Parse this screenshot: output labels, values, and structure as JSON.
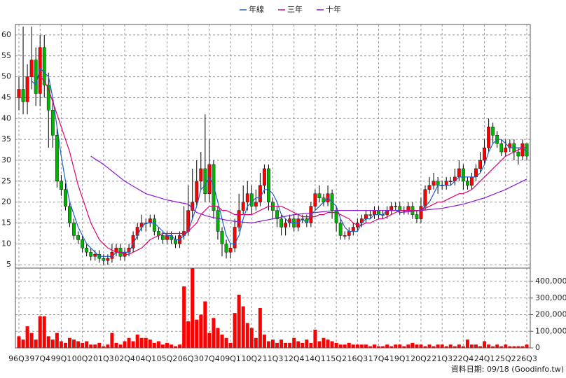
{
  "chart_data": {
    "type": "candlestick",
    "categories": [
      "96Q3",
      null,
      null,
      null,
      null,
      "97Q4",
      null,
      null,
      null,
      null,
      "99Q1",
      null,
      null,
      null,
      null,
      "00Q2",
      null,
      null,
      null,
      null,
      "01Q3",
      null,
      null,
      null,
      null,
      "02Q4",
      null,
      null,
      null,
      null,
      "04Q1",
      null,
      null,
      null,
      null,
      "05Q2",
      null,
      null,
      null,
      null,
      "06Q3",
      null,
      null,
      null,
      null,
      "07Q4",
      null,
      null,
      null,
      null,
      "09Q1",
      null,
      null,
      null,
      null,
      "10Q2",
      null,
      null,
      null,
      null,
      "11Q3",
      null,
      null,
      null,
      null,
      "12Q4",
      null,
      null,
      null,
      null,
      "14Q1",
      null,
      null,
      null,
      null,
      "15Q2",
      null,
      null,
      null,
      null,
      "16Q3",
      null,
      null,
      null,
      null,
      "17Q4",
      null,
      null,
      null,
      null,
      "19Q1",
      null,
      null,
      null,
      null,
      "20Q2",
      null,
      null,
      null,
      null,
      "21Q3",
      null,
      null,
      null,
      null,
      "22Q4",
      null,
      null,
      null,
      null,
      "24Q1",
      null,
      null,
      null,
      null,
      "25Q2",
      null,
      null,
      null,
      null,
      "26Q3"
    ],
    "ohlc": [
      [
        45,
        50,
        42,
        47
      ],
      [
        47,
        62,
        41,
        44
      ],
      [
        44,
        53,
        41,
        50
      ],
      [
        50,
        62,
        47,
        54
      ],
      [
        54,
        57,
        43,
        46
      ],
      [
        46,
        60,
        43,
        57
      ],
      [
        57,
        60,
        45,
        48
      ],
      [
        48,
        51,
        33,
        42
      ],
      [
        42,
        45,
        33,
        36
      ],
      [
        36,
        38,
        23.5,
        25
      ],
      [
        25,
        26.5,
        21.5,
        23
      ],
      [
        23,
        24.5,
        18,
        19
      ],
      [
        19,
        20,
        14,
        15
      ],
      [
        15,
        16,
        11,
        12
      ],
      [
        12,
        13,
        10,
        11
      ],
      [
        11,
        12,
        8,
        9
      ],
      [
        9,
        10,
        7,
        8
      ],
      [
        8,
        9,
        6,
        7
      ],
      [
        7,
        8.5,
        6,
        7.5
      ],
      [
        7.5,
        8.5,
        5.5,
        6.5
      ],
      [
        6.5,
        7.5,
        5,
        6
      ],
      [
        6,
        7.5,
        5,
        6.5
      ],
      [
        6.5,
        10,
        5.5,
        8
      ],
      [
        8,
        10,
        7,
        9
      ],
      [
        9,
        10,
        6,
        7
      ],
      [
        7,
        9,
        6,
        8
      ],
      [
        8,
        10,
        7,
        9
      ],
      [
        9,
        13,
        8,
        12
      ],
      [
        12,
        15,
        11,
        14
      ],
      [
        14,
        17,
        13,
        15
      ],
      [
        15,
        16,
        13,
        15
      ],
      [
        15,
        17,
        14,
        16
      ],
      [
        16,
        17,
        12,
        13
      ],
      [
        13,
        14,
        11,
        12
      ],
      [
        12,
        13,
        10,
        11
      ],
      [
        11,
        13,
        10,
        12
      ],
      [
        12,
        13,
        10,
        11
      ],
      [
        11,
        12,
        9,
        10
      ],
      [
        10,
        13,
        9,
        12
      ],
      [
        12,
        19,
        11,
        13
      ],
      [
        13,
        24,
        12,
        18
      ],
      [
        18,
        28,
        16,
        20
      ],
      [
        20,
        30,
        19,
        25
      ],
      [
        25,
        32,
        23,
        28
      ],
      [
        28,
        41,
        20,
        22
      ],
      [
        22,
        35,
        20,
        29
      ],
      [
        29,
        30,
        16,
        18
      ],
      [
        18,
        19,
        11,
        13
      ],
      [
        13,
        14,
        7,
        10
      ],
      [
        10,
        11,
        6.5,
        8
      ],
      [
        8,
        10,
        6.5,
        9
      ],
      [
        9,
        16,
        8,
        14
      ],
      [
        14,
        22,
        13,
        18
      ],
      [
        18,
        24,
        17,
        20
      ],
      [
        20,
        25,
        18,
        22
      ],
      [
        22,
        24,
        17,
        19
      ],
      [
        19,
        23,
        18,
        20
      ],
      [
        20,
        27,
        19,
        24
      ],
      [
        24,
        29,
        22,
        28
      ],
      [
        28,
        29,
        18,
        20
      ],
      [
        20,
        21,
        16,
        18
      ],
      [
        18,
        19,
        14,
        16
      ],
      [
        16,
        17,
        12,
        14
      ],
      [
        14,
        16,
        12,
        15
      ],
      [
        15,
        17,
        14,
        16
      ],
      [
        16,
        17,
        13,
        14
      ],
      [
        14,
        17,
        13,
        16
      ],
      [
        16,
        17,
        15,
        16
      ],
      [
        16,
        17,
        14,
        15
      ],
      [
        15,
        20,
        14,
        19
      ],
      [
        19,
        23,
        18,
        22
      ],
      [
        22,
        24,
        20,
        21
      ],
      [
        21,
        22,
        19,
        20
      ],
      [
        20,
        24,
        19,
        22
      ],
      [
        22,
        23,
        16,
        18
      ],
      [
        18,
        19,
        13,
        15
      ],
      [
        15,
        16,
        11,
        12
      ],
      [
        12,
        13,
        11,
        12
      ],
      [
        12,
        14,
        11,
        13
      ],
      [
        13,
        15,
        12,
        14
      ],
      [
        14,
        16,
        13,
        15
      ],
      [
        15,
        17,
        14,
        16
      ],
      [
        16,
        18,
        15,
        17
      ],
      [
        17,
        18,
        16,
        17
      ],
      [
        17,
        19,
        16,
        18
      ],
      [
        18,
        19,
        16,
        17
      ],
      [
        17,
        18,
        16,
        17
      ],
      [
        17,
        19,
        16,
        18
      ],
      [
        18,
        20,
        17,
        19
      ],
      [
        19,
        20,
        18,
        19
      ],
      [
        19,
        20,
        17,
        18
      ],
      [
        18,
        19,
        17,
        18
      ],
      [
        18,
        20,
        17,
        19
      ],
      [
        19,
        20,
        16,
        17
      ],
      [
        17,
        18,
        15,
        16
      ],
      [
        16,
        21,
        15,
        19
      ],
      [
        19,
        24,
        18,
        23
      ],
      [
        23,
        26,
        22,
        24
      ],
      [
        24,
        27,
        23,
        25
      ],
      [
        25,
        26,
        22,
        24
      ],
      [
        24,
        25,
        23,
        24
      ],
      [
        24,
        26,
        23,
        25
      ],
      [
        25,
        26,
        24,
        25
      ],
      [
        25,
        28,
        24,
        26
      ],
      [
        26,
        30,
        25,
        28
      ],
      [
        28,
        29,
        23,
        25
      ],
      [
        25,
        26,
        23,
        24
      ],
      [
        24,
        27,
        23,
        26
      ],
      [
        26,
        29,
        25,
        28
      ],
      [
        28,
        32,
        27,
        30
      ],
      [
        30,
        35,
        29,
        33
      ],
      [
        33,
        40,
        32,
        38
      ],
      [
        38,
        39,
        34,
        36
      ],
      [
        36,
        37,
        33,
        34
      ],
      [
        34,
        35,
        31,
        32
      ],
      [
        32,
        35,
        31,
        33
      ],
      [
        33,
        35,
        32,
        34
      ],
      [
        34,
        35,
        30,
        32
      ],
      [
        32,
        33,
        29,
        31
      ],
      [
        31,
        35,
        30,
        34
      ],
      [
        34,
        34,
        30,
        31
      ]
    ],
    "up_color": "#ff0000",
    "down_color": "#00b400",
    "ylim": [
      4.2,
      62.5
    ],
    "yticks": [
      5,
      10,
      15,
      20,
      25,
      30,
      35,
      40,
      45,
      50,
      55,
      60
    ],
    "series": [
      {
        "name": "年線",
        "color": "#1e5fc8",
        "values": [
          null,
          null,
          null,
          49,
          48,
          52,
          51,
          50,
          45,
          38,
          31,
          25,
          20,
          17,
          14,
          12,
          10,
          9,
          8,
          7,
          7,
          7,
          7,
          8,
          8,
          8,
          8,
          10,
          12,
          14,
          15,
          15,
          15,
          14,
          13,
          12,
          12,
          11,
          11,
          12,
          13,
          16,
          19,
          23,
          24,
          26,
          24,
          20,
          16,
          12,
          10,
          10,
          12,
          16,
          19,
          20,
          21,
          21,
          23,
          23,
          22,
          20,
          17,
          16,
          15,
          15,
          15,
          16,
          15,
          17,
          18,
          19,
          20,
          21,
          20,
          19,
          16,
          14,
          13,
          13,
          13,
          15,
          16,
          16,
          17,
          17,
          17,
          18,
          18,
          18,
          18,
          18,
          18,
          18,
          18,
          18,
          19,
          20,
          22,
          24,
          24,
          24,
          24,
          25,
          26,
          26,
          26,
          26,
          26,
          27,
          29,
          32,
          34,
          35,
          35,
          34,
          33,
          33,
          33,
          33,
          32
        ]
      },
      {
        "name": "三年",
        "color": "#e0006e",
        "values": [
          null,
          null,
          null,
          null,
          null,
          50,
          49,
          47,
          44,
          41,
          38,
          35,
          32,
          28,
          24,
          21,
          18,
          15,
          13,
          11,
          10,
          9,
          8.5,
          8,
          8,
          7.5,
          7.5,
          8,
          8.5,
          9,
          10,
          11,
          11.5,
          12,
          12.5,
          12.5,
          12.5,
          12.5,
          12.5,
          12.5,
          13,
          14,
          15,
          17,
          18,
          19,
          19,
          19,
          18,
          18,
          17.5,
          17,
          17,
          17,
          17,
          17,
          17.5,
          18,
          18.5,
          19,
          19,
          19,
          19,
          18.5,
          18,
          17.5,
          17,
          16.5,
          16.5,
          16.5,
          16.5,
          17,
          17,
          17.5,
          17.5,
          17.5,
          17,
          16.5,
          16,
          15,
          14.5,
          14.5,
          15,
          15,
          15.5,
          16,
          16,
          16.5,
          17,
          17.5,
          18,
          18,
          18,
          18,
          18,
          18,
          18.5,
          19,
          19.5,
          20,
          20,
          20.5,
          21,
          21.5,
          22,
          22,
          22.5,
          23,
          24,
          25,
          26,
          27,
          28,
          29,
          30,
          31,
          31.5,
          32,
          32.5,
          33,
          33
        ]
      },
      {
        "name": "十年",
        "color": "#8a1ad0",
        "values": [
          null,
          null,
          null,
          null,
          null,
          null,
          null,
          null,
          null,
          null,
          null,
          null,
          null,
          null,
          null,
          null,
          null,
          31,
          30.3,
          29.7,
          29,
          28.2,
          27.4,
          26.6,
          25.8,
          25,
          24.4,
          23.8,
          23.2,
          22.6,
          22,
          21.7,
          21.4,
          21.1,
          20.8,
          20.5,
          20.3,
          20.1,
          19.9,
          19.7,
          19.5,
          18.5,
          17.5,
          17.2,
          16.8,
          16.5,
          16.3,
          16.1,
          15.9,
          15.7,
          15.5,
          15.4,
          15.3,
          15.2,
          15.1,
          15,
          15.2,
          15.4,
          15.6,
          15.8,
          16,
          16.2,
          16.4,
          16.6,
          16.8,
          17,
          17.1,
          17.2,
          17.3,
          17.4,
          17.5,
          17.6,
          17.7,
          17.8,
          17.9,
          18,
          18,
          18,
          18,
          18,
          18,
          18,
          18,
          18,
          18,
          18,
          18,
          18,
          18,
          18,
          17.5,
          17.6,
          17.7,
          17.8,
          17.9,
          18,
          18.1,
          18.2,
          18.3,
          18.4,
          18.5,
          18.7,
          18.9,
          19.1,
          19.3,
          19.5,
          19.8,
          20.1,
          20.4,
          20.7,
          21,
          21.4,
          21.8,
          22.2,
          22.6,
          23,
          23.5,
          24,
          24.5,
          25,
          25.5
        ]
      }
    ],
    "volume": {
      "color": "#ff0000",
      "ylim": [
        0,
        480000
      ],
      "yticks": [
        0,
        {
          "value": 100000,
          "label": "100,000"
        },
        {
          "value": 200000,
          "label": "200,000"
        },
        {
          "value": 300000,
          "label": "300,000"
        },
        {
          "value": 400000,
          "label": "400,000"
        }
      ],
      "values": [
        70000,
        50000,
        130000,
        90000,
        50000,
        190000,
        190000,
        70000,
        50000,
        90000,
        40000,
        30000,
        60000,
        50000,
        40000,
        30000,
        40000,
        20000,
        20000,
        30000,
        10000,
        20000,
        90000,
        30000,
        20000,
        40000,
        60000,
        40000,
        80000,
        60000,
        60000,
        50000,
        30000,
        40000,
        20000,
        30000,
        20000,
        10000,
        20000,
        370000,
        160000,
        480000,
        170000,
        200000,
        280000,
        90000,
        180000,
        120000,
        80000,
        60000,
        30000,
        210000,
        320000,
        250000,
        150000,
        120000,
        60000,
        240000,
        80000,
        40000,
        50000,
        30000,
        50000,
        30000,
        30000,
        60000,
        40000,
        30000,
        50000,
        30000,
        110000,
        40000,
        60000,
        50000,
        40000,
        30000,
        20000,
        20000,
        30000,
        20000,
        20000,
        20000,
        20000,
        10000,
        20000,
        10000,
        10000,
        20000,
        10000,
        20000,
        20000,
        10000,
        20000,
        30000,
        20000,
        20000,
        10000,
        20000,
        10000,
        20000,
        20000,
        10000,
        20000,
        10000,
        20000,
        10000,
        50000,
        20000,
        20000,
        10000,
        40000,
        20000,
        10000,
        20000,
        10000,
        20000,
        10000,
        10000,
        10000,
        10000,
        20000
      ]
    },
    "grid": true,
    "legend": "top",
    "footnote": "資料日期: 09/18 (Goodinfo.tw)"
  }
}
